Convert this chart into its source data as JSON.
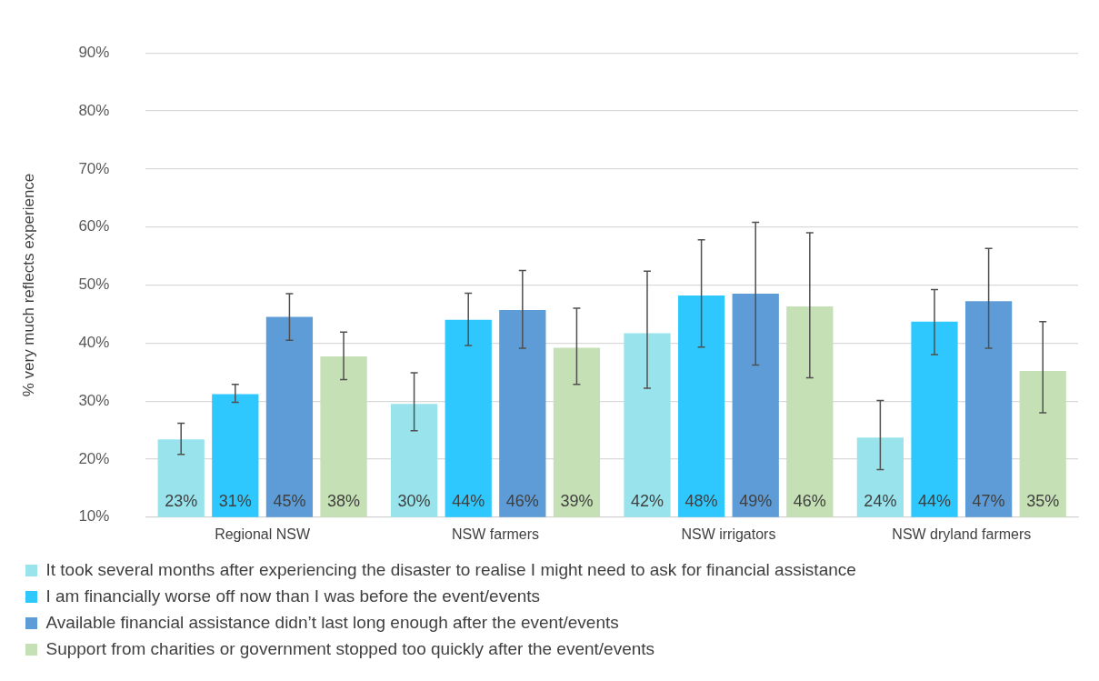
{
  "chart_data": {
    "type": "bar",
    "ylabel": "% very much reflects experience",
    "categories": [
      "Regional NSW",
      "NSW farmers",
      "NSW irrigators",
      "NSW dryland farmers"
    ],
    "series": [
      {
        "name": "It took several months after experiencing the disaster to realise I might need to ask for financial assistance",
        "color": "#99e4ec",
        "values": [
          23.4,
          29.5,
          41.7,
          23.7
        ],
        "errors": [
          [
            20.8,
            26.2
          ],
          [
            24.9,
            34.9
          ],
          [
            32.2,
            52.4
          ],
          [
            18.2,
            30.1
          ]
        ],
        "value_labels": [
          "23%",
          "30%",
          "42%",
          "24%"
        ]
      },
      {
        "name": "I am financially worse off now than I was before the event/events",
        "color": "#2ec8fe",
        "values": [
          31.2,
          44.0,
          48.2,
          43.7
        ],
        "errors": [
          [
            29.8,
            32.9
          ],
          [
            39.6,
            48.6
          ],
          [
            39.3,
            57.8
          ],
          [
            38.0,
            49.2
          ]
        ],
        "value_labels": [
          "31%",
          "44%",
          "48%",
          "44%"
        ]
      },
      {
        "name": "Available financial assistance didn’t last long enough after the event/events",
        "color": "#5d9cd6",
        "values": [
          44.5,
          45.7,
          48.5,
          47.2
        ],
        "errors": [
          [
            40.5,
            48.5
          ],
          [
            39.1,
            52.5
          ],
          [
            36.2,
            60.8
          ],
          [
            39.1,
            56.3
          ]
        ],
        "value_labels": [
          "45%",
          "46%",
          "49%",
          "47%"
        ]
      },
      {
        "name": "Support from charities or government stopped too quickly after the event/events",
        "color": "#c5e0b4",
        "values": [
          37.7,
          39.2,
          46.3,
          35.2
        ],
        "errors": [
          [
            33.7,
            41.9
          ],
          [
            32.9,
            46.0
          ],
          [
            34.0,
            59.0
          ],
          [
            28.0,
            43.7
          ]
        ],
        "value_labels": [
          "38%",
          "39%",
          "46%",
          "35%"
        ]
      }
    ],
    "ylim": [
      10,
      90
    ],
    "yticks": [
      {
        "value": 10,
        "label": "10%"
      },
      {
        "value": 20,
        "label": "20%"
      },
      {
        "value": 30,
        "label": "30%"
      },
      {
        "value": 40,
        "label": "40%"
      },
      {
        "value": 50,
        "label": "50%"
      },
      {
        "value": 60,
        "label": "60%"
      },
      {
        "value": 70,
        "label": "70%"
      },
      {
        "value": 80,
        "label": "80%"
      },
      {
        "value": 90,
        "label": "90%"
      }
    ],
    "grid": "y",
    "legend": "bottom"
  }
}
